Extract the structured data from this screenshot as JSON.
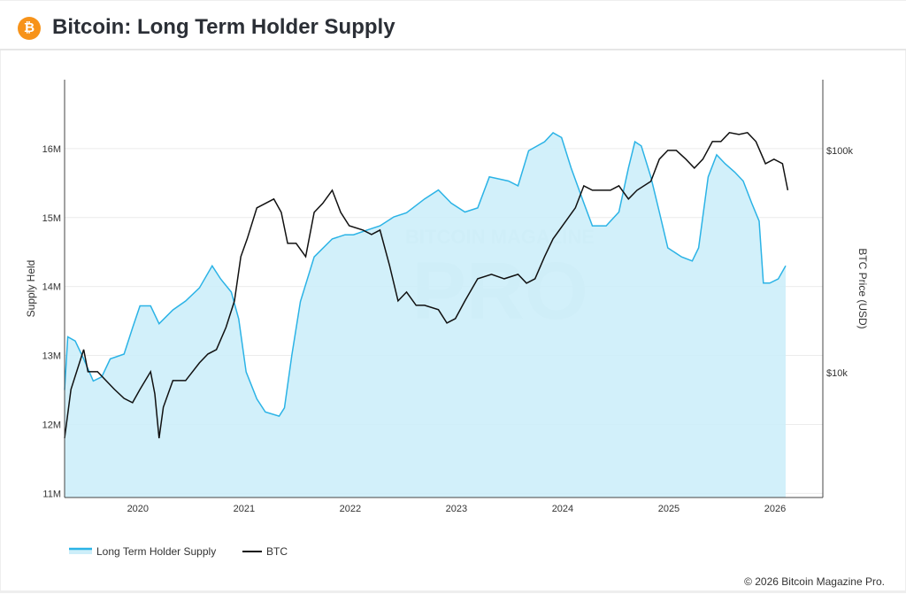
{
  "header": {
    "title": "Bitcoin: Long Term Holder Supply",
    "logo_icon": "bitcoin-icon"
  },
  "footer": {
    "copyright": "© 2026 Bitcoin Magazine Pro."
  },
  "watermark": "BITCOIN MAGAZINE PRO",
  "chart_data": {
    "type": "area",
    "title": "Bitcoin: Long Term Holder Supply",
    "xlabel": "",
    "ylabel": "Supply Held",
    "y2label": "BTC Price (USD)",
    "xlim": [
      2019.31,
      2026.45
    ],
    "ylim": [
      10.94,
      17.0
    ],
    "y2lim": [
      2742,
      208000
    ],
    "y2scale": "log",
    "xticks": [
      {
        "v": 2020,
        "label": "2020"
      },
      {
        "v": 2021,
        "label": "2021"
      },
      {
        "v": 2022,
        "label": "2022"
      },
      {
        "v": 2023,
        "label": "2023"
      },
      {
        "v": 2024,
        "label": "2024"
      },
      {
        "v": 2025,
        "label": "2025"
      },
      {
        "v": 2026,
        "label": "2026"
      }
    ],
    "yticks": [
      {
        "v": 11,
        "label": "11M"
      },
      {
        "v": 12,
        "label": "12M"
      },
      {
        "v": 13,
        "label": "13M"
      },
      {
        "v": 14,
        "label": "14M"
      },
      {
        "v": 15,
        "label": "15M"
      },
      {
        "v": 16,
        "label": "16M"
      }
    ],
    "y2ticks": [
      {
        "v": 10000,
        "label": "$10k"
      },
      {
        "v": 100000,
        "label": "$100k"
      }
    ],
    "grid": true,
    "legend_position": "bottom-left",
    "series": [
      {
        "name": "Long Term Holder Supply",
        "unit": "M BTC",
        "color": "#2bb3e6",
        "fill": "#cdeef9",
        "axis": "left",
        "points": [
          [
            2019.31,
            12.5
          ],
          [
            2019.34,
            13.27
          ],
          [
            2019.41,
            13.21
          ],
          [
            2019.49,
            12.95
          ],
          [
            2019.58,
            12.63
          ],
          [
            2019.66,
            12.69
          ],
          [
            2019.74,
            12.95
          ],
          [
            2019.87,
            13.02
          ],
          [
            2019.95,
            13.4
          ],
          [
            2020.02,
            13.72
          ],
          [
            2020.12,
            13.72
          ],
          [
            2020.2,
            13.46
          ],
          [
            2020.33,
            13.66
          ],
          [
            2020.45,
            13.79
          ],
          [
            2020.58,
            13.98
          ],
          [
            2020.7,
            14.3
          ],
          [
            2020.78,
            14.11
          ],
          [
            2020.88,
            13.92
          ],
          [
            2020.95,
            13.53
          ],
          [
            2021.02,
            12.76
          ],
          [
            2021.12,
            12.37
          ],
          [
            2021.2,
            12.18
          ],
          [
            2021.33,
            12.12
          ],
          [
            2021.38,
            12.24
          ],
          [
            2021.45,
            13.01
          ],
          [
            2021.53,
            13.78
          ],
          [
            2021.66,
            14.43
          ],
          [
            2021.83,
            14.69
          ],
          [
            2021.95,
            14.75
          ],
          [
            2022.03,
            14.75
          ],
          [
            2022.16,
            14.82
          ],
          [
            2022.28,
            14.88
          ],
          [
            2022.41,
            15.01
          ],
          [
            2022.53,
            15.07
          ],
          [
            2022.7,
            15.27
          ],
          [
            2022.83,
            15.4
          ],
          [
            2022.95,
            15.21
          ],
          [
            2023.08,
            15.08
          ],
          [
            2023.2,
            15.14
          ],
          [
            2023.31,
            15.59
          ],
          [
            2023.49,
            15.53
          ],
          [
            2023.58,
            15.46
          ],
          [
            2023.68,
            15.97
          ],
          [
            2023.83,
            16.1
          ],
          [
            2023.91,
            16.23
          ],
          [
            2023.99,
            16.16
          ],
          [
            2024.08,
            15.72
          ],
          [
            2024.2,
            15.21
          ],
          [
            2024.28,
            14.88
          ],
          [
            2024.41,
            14.88
          ],
          [
            2024.53,
            15.08
          ],
          [
            2024.62,
            15.72
          ],
          [
            2024.68,
            16.1
          ],
          [
            2024.74,
            16.04
          ],
          [
            2024.83,
            15.59
          ],
          [
            2024.91,
            15.08
          ],
          [
            2024.99,
            14.56
          ],
          [
            2025.12,
            14.43
          ],
          [
            2025.22,
            14.37
          ],
          [
            2025.28,
            14.56
          ],
          [
            2025.37,
            15.59
          ],
          [
            2025.45,
            15.91
          ],
          [
            2025.53,
            15.78
          ],
          [
            2025.62,
            15.66
          ],
          [
            2025.7,
            15.53
          ],
          [
            2025.78,
            15.21
          ],
          [
            2025.85,
            14.95
          ],
          [
            2025.89,
            14.05
          ],
          [
            2025.95,
            14.05
          ],
          [
            2026.03,
            14.11
          ],
          [
            2026.1,
            14.3
          ]
        ]
      },
      {
        "name": "BTC",
        "unit": "USD",
        "color": "#111111",
        "axis": "right",
        "points": [
          [
            2019.31,
            5070
          ],
          [
            2019.37,
            8400
          ],
          [
            2019.45,
            11060
          ],
          [
            2019.49,
            12690
          ],
          [
            2019.53,
            10090
          ],
          [
            2019.62,
            10090
          ],
          [
            2019.7,
            9210
          ],
          [
            2019.78,
            8400
          ],
          [
            2019.87,
            7660
          ],
          [
            2019.95,
            7320
          ],
          [
            2020.02,
            8400
          ],
          [
            2020.12,
            10090
          ],
          [
            2020.16,
            8020
          ],
          [
            2020.2,
            5070
          ],
          [
            2020.24,
            6990
          ],
          [
            2020.33,
            9210
          ],
          [
            2020.45,
            9210
          ],
          [
            2020.58,
            11060
          ],
          [
            2020.66,
            12130
          ],
          [
            2020.74,
            12690
          ],
          [
            2020.83,
            15960
          ],
          [
            2020.91,
            21020
          ],
          [
            2020.97,
            33250
          ],
          [
            2021.03,
            39970
          ],
          [
            2021.12,
            55100
          ],
          [
            2021.2,
            57700
          ],
          [
            2021.28,
            60400
          ],
          [
            2021.35,
            52600
          ],
          [
            2021.41,
            38170
          ],
          [
            2021.49,
            38170
          ],
          [
            2021.58,
            33250
          ],
          [
            2021.66,
            52600
          ],
          [
            2021.74,
            57700
          ],
          [
            2021.83,
            66170
          ],
          [
            2021.91,
            52600
          ],
          [
            2021.99,
            45820
          ],
          [
            2022.12,
            43790
          ],
          [
            2022.2,
            41830
          ],
          [
            2022.28,
            43790
          ],
          [
            2022.37,
            30340
          ],
          [
            2022.45,
            21020
          ],
          [
            2022.53,
            23040
          ],
          [
            2022.62,
            20090
          ],
          [
            2022.7,
            20090
          ],
          [
            2022.83,
            19190
          ],
          [
            2022.91,
            16720
          ],
          [
            2022.99,
            17500
          ],
          [
            2023.08,
            21020
          ],
          [
            2023.2,
            26440
          ],
          [
            2023.33,
            27690
          ],
          [
            2023.45,
            26440
          ],
          [
            2023.58,
            27690
          ],
          [
            2023.66,
            25260
          ],
          [
            2023.74,
            26440
          ],
          [
            2023.83,
            33250
          ],
          [
            2023.91,
            39970
          ],
          [
            2024.03,
            48020
          ],
          [
            2024.12,
            55100
          ],
          [
            2024.2,
            69270
          ],
          [
            2024.28,
            66170
          ],
          [
            2024.37,
            66170
          ],
          [
            2024.45,
            66170
          ],
          [
            2024.53,
            69270
          ],
          [
            2024.62,
            60400
          ],
          [
            2024.7,
            66170
          ],
          [
            2024.83,
            72540
          ],
          [
            2024.91,
            91270
          ],
          [
            2024.99,
            100000
          ],
          [
            2025.07,
            100000
          ],
          [
            2025.16,
            91270
          ],
          [
            2025.24,
            83220
          ],
          [
            2025.32,
            91270
          ],
          [
            2025.41,
            109600
          ],
          [
            2025.49,
            109600
          ],
          [
            2025.57,
            120200
          ],
          [
            2025.66,
            117900
          ],
          [
            2025.74,
            120200
          ],
          [
            2025.82,
            109600
          ],
          [
            2025.91,
            87150
          ],
          [
            2025.99,
            91270
          ],
          [
            2026.07,
            87150
          ],
          [
            2026.12,
            66170
          ]
        ]
      }
    ]
  }
}
